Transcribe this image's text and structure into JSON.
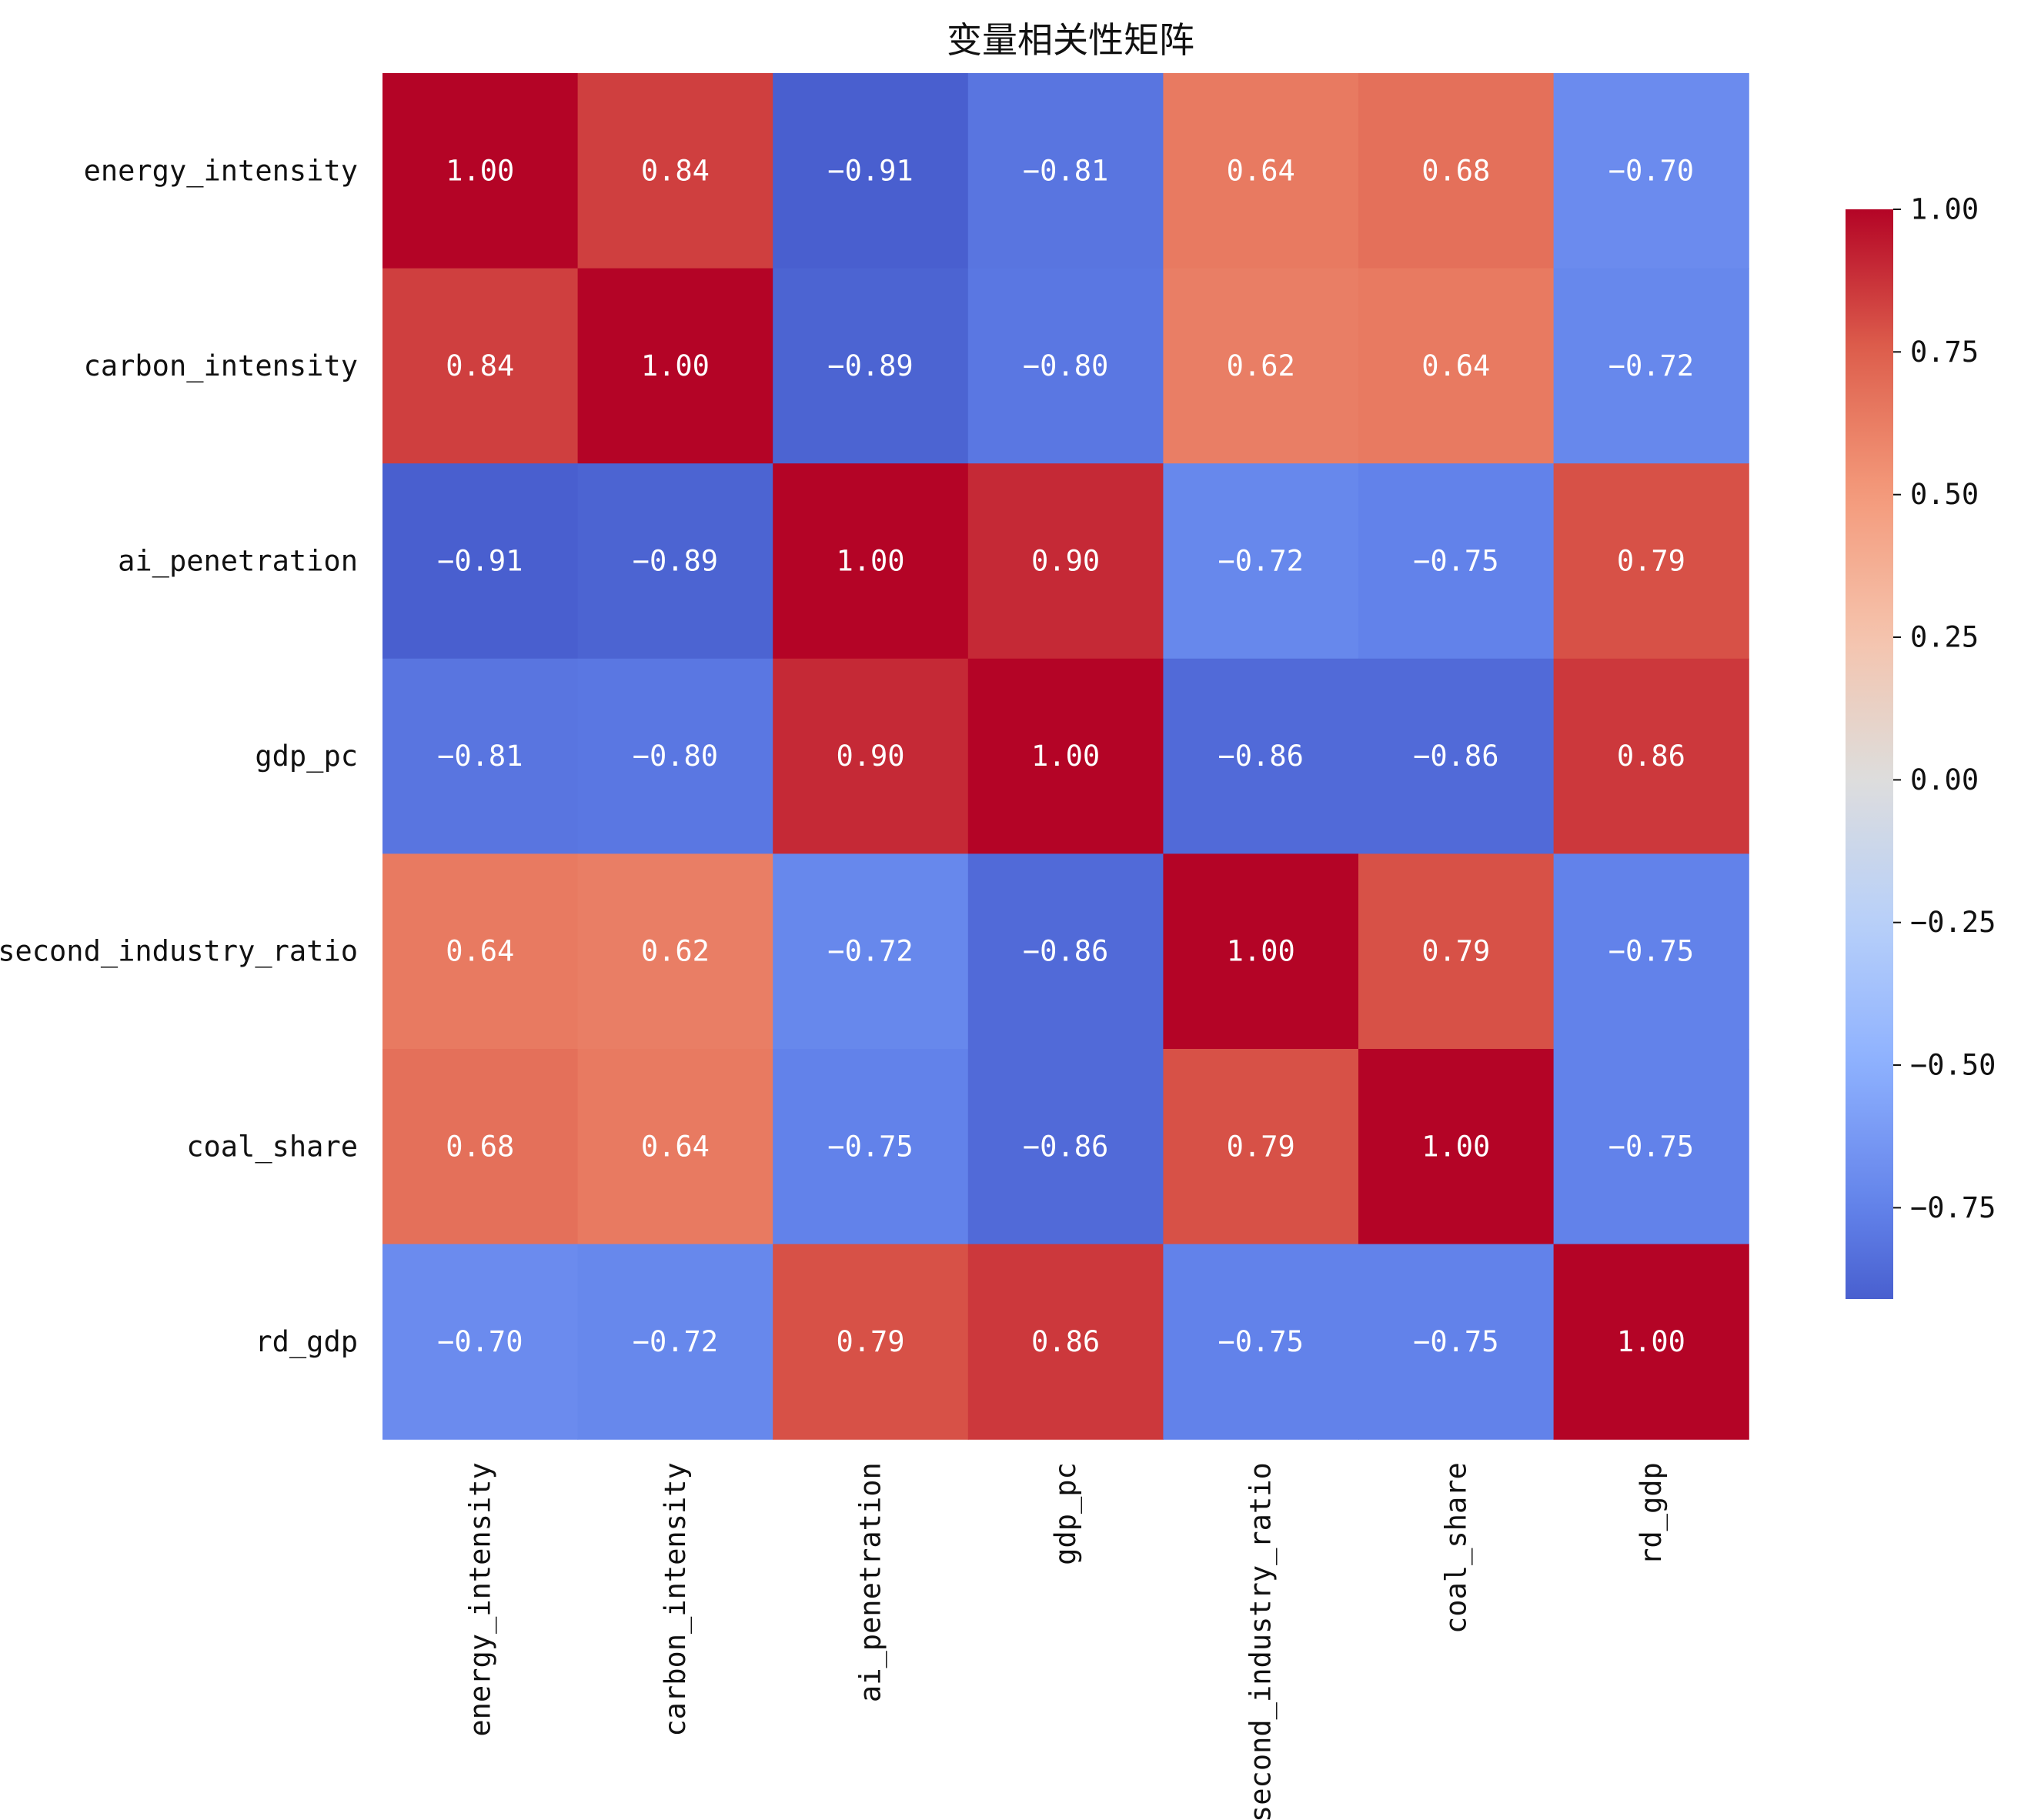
{
  "chart_data": {
    "type": "heatmap",
    "title": "变量相关性矩阵",
    "rows": [
      "energy_intensity",
      "carbon_intensity",
      "ai_penetration",
      "gdp_pc",
      "second_industry_ratio",
      "coal_share",
      "rd_gdp"
    ],
    "columns": [
      "energy_intensity",
      "carbon_intensity",
      "ai_penetration",
      "gdp_pc",
      "second_industry_ratio",
      "coal_share",
      "rd_gdp"
    ],
    "values": [
      [
        1.0,
        0.84,
        -0.91,
        -0.81,
        0.64,
        0.68,
        -0.7
      ],
      [
        0.84,
        1.0,
        -0.89,
        -0.8,
        0.62,
        0.64,
        -0.72
      ],
      [
        -0.91,
        -0.89,
        1.0,
        0.9,
        -0.72,
        -0.75,
        0.79
      ],
      [
        -0.81,
        -0.8,
        0.9,
        1.0,
        -0.86,
        -0.86,
        0.86
      ],
      [
        0.64,
        0.62,
        -0.72,
        -0.86,
        1.0,
        0.79,
        -0.75
      ],
      [
        0.68,
        0.64,
        -0.75,
        -0.86,
        0.79,
        1.0,
        -0.75
      ],
      [
        -0.7,
        -0.72,
        0.79,
        0.86,
        -0.75,
        -0.75,
        1.0
      ]
    ],
    "value_format": "2 decimals",
    "colormap": "coolwarm",
    "colorbar": {
      "range": [
        -0.91,
        1.0
      ],
      "ticks": [
        1.0,
        0.75,
        0.5,
        0.25,
        0.0,
        -0.25,
        -0.5,
        -0.75
      ],
      "tick_labels": [
        "1.00",
        "0.75",
        "0.50",
        "0.25",
        "0.00",
        "−0.25",
        "−0.50",
        "−0.75"
      ],
      "placement": "right"
    },
    "colors": {
      "cold": "#3b4cc0",
      "neutral": "#dddddd",
      "hot": "#b40426",
      "text": "#ffffff"
    }
  }
}
